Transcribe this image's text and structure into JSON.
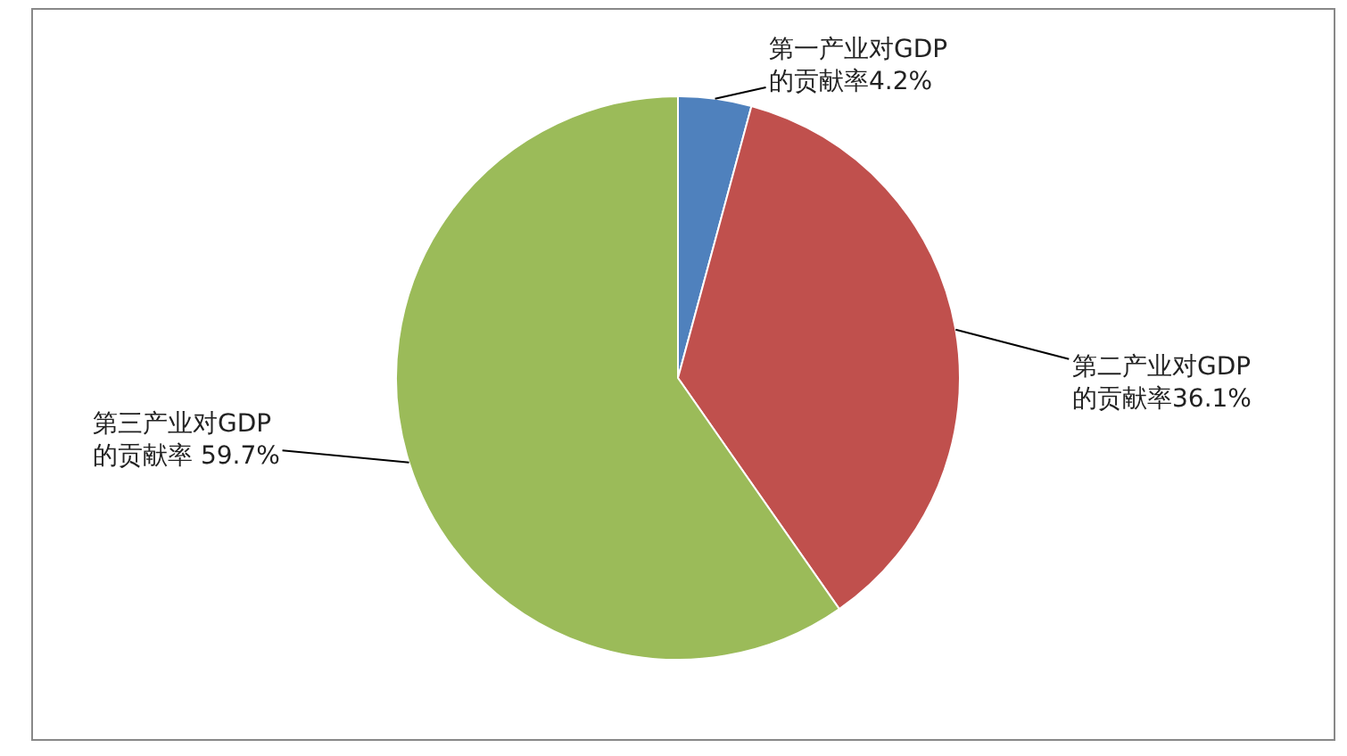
{
  "chart_data": {
    "type": "pie",
    "categories": [
      "第一产业对GDP\n的贡献率",
      "第二产业对GDP\n的贡献率",
      "第三产业对GDP\n的贡献率 "
    ],
    "values": [
      4.2,
      36.1,
      59.7
    ],
    "value_labels": [
      "4.2%",
      "36.1%",
      "59.7%"
    ],
    "colors": [
      "#4f81bd",
      "#c0504d",
      "#9bbb59"
    ]
  }
}
